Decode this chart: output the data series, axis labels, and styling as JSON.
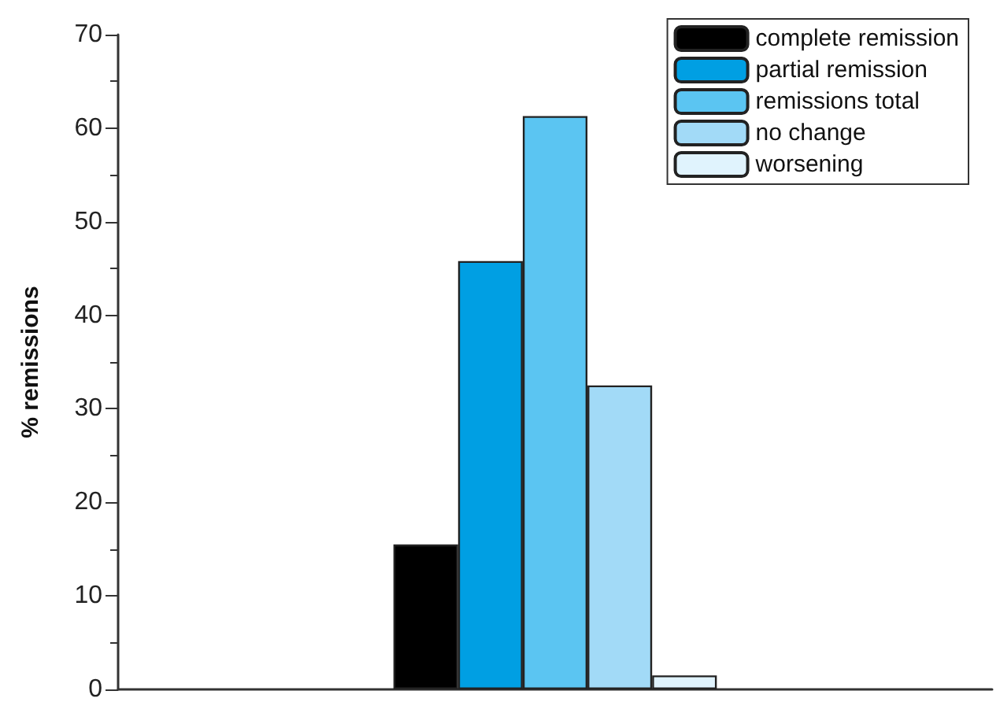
{
  "chart_data": {
    "type": "bar",
    "ylabel": "% remissions",
    "categories": [
      null
    ],
    "series": [
      {
        "name": "complete remission",
        "color": "#000000",
        "values": [
          15.5
        ]
      },
      {
        "name": "partial remission",
        "color": "#009fe3",
        "values": [
          45.8
        ]
      },
      {
        "name": "remissions total",
        "color": "#5bc5f2",
        "values": [
          61.3
        ]
      },
      {
        "name": "no change",
        "color": "#a2daf7",
        "values": [
          32.5
        ]
      },
      {
        "name": "worsening",
        "color": "#e0f3fd",
        "values": [
          1.5
        ]
      }
    ],
    "ylim": [
      0,
      70
    ],
    "yticks": [
      0,
      10,
      20,
      30,
      40,
      50,
      60,
      70
    ],
    "grid": false,
    "legend": "top right"
  }
}
